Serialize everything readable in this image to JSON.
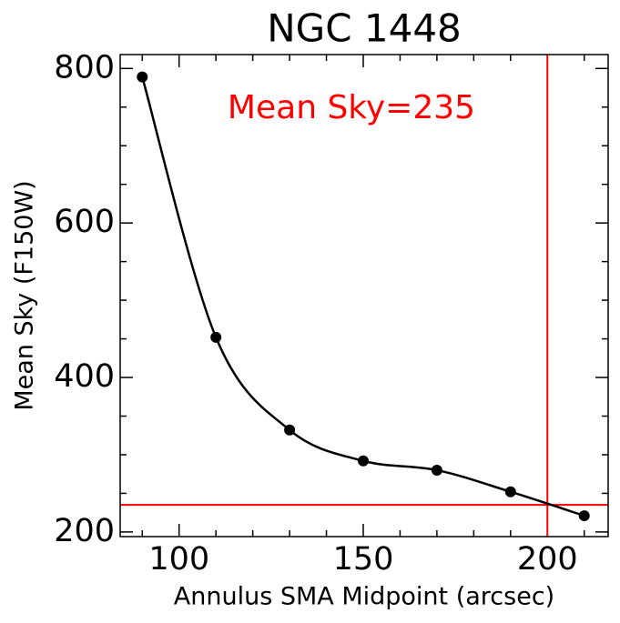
{
  "chart_data": {
    "type": "line",
    "title": "NGC 1448",
    "xlabel": "Annulus SMA Midpoint (arcsec)",
    "ylabel": "Mean Sky (F150W)",
    "annotation": "Mean Sky=235",
    "series": [
      {
        "name": "Mean Sky",
        "color": "#000000",
        "x": [
          90,
          110,
          130,
          150,
          170,
          190,
          210
        ],
        "values": [
          789,
          452,
          332,
          292,
          280,
          252,
          221
        ]
      }
    ],
    "xlim": [
      84,
      216.5
    ],
    "ylim": [
      194,
      818
    ],
    "xticks": [
      100,
      150,
      200
    ],
    "yticks": [
      200,
      400,
      600,
      800
    ],
    "xticks_minor": [
      90,
      110,
      120,
      130,
      140,
      160,
      170,
      180,
      190,
      210
    ],
    "yticks_minor": [
      250,
      300,
      350,
      450,
      500,
      550,
      650,
      700,
      750
    ],
    "hline": 235,
    "vline": 200,
    "ref_color": "#ff0000"
  }
}
